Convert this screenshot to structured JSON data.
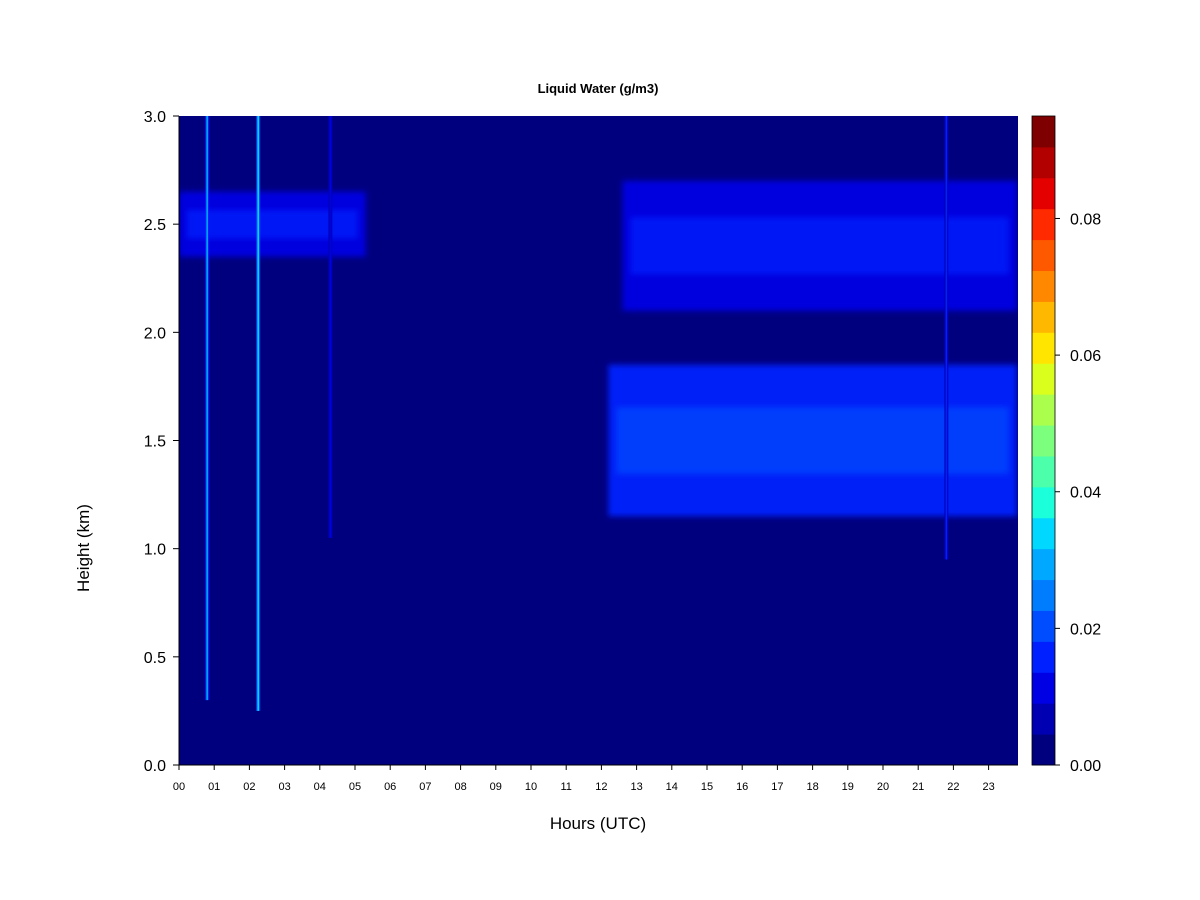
{
  "chart_data": {
    "type": "heatmap",
    "title": "Liquid Water (g/m3)",
    "xlabel": "Hours (UTC)",
    "ylabel": "Height (km)",
    "xlim": [
      0,
      24
    ],
    "ylim": [
      0.0,
      3.0
    ],
    "x_ticks": [
      "00",
      "01",
      "02",
      "03",
      "04",
      "05",
      "06",
      "07",
      "08",
      "09",
      "10",
      "11",
      "12",
      "13",
      "14",
      "15",
      "16",
      "17",
      "18",
      "19",
      "20",
      "21",
      "22",
      "23"
    ],
    "y_ticks": [
      "0.0",
      "0.5",
      "1.0",
      "1.5",
      "2.0",
      "2.5",
      "3.0"
    ],
    "colorbar": {
      "range": [
        0.0,
        0.095
      ],
      "tick_labels": [
        "0.00",
        "0.02",
        "0.04",
        "0.06",
        "0.08"
      ],
      "tick_values": [
        0.0,
        0.02,
        0.04,
        0.06,
        0.08
      ],
      "colors": [
        "#00007f",
        "#0000b2",
        "#0000e5",
        "#0020ff",
        "#004cff",
        "#007cff",
        "#00a8ff",
        "#00d8ff",
        "#1cffdb",
        "#4cffab",
        "#7cff7c",
        "#abff4c",
        "#dbff1c",
        "#ffe500",
        "#ffb800",
        "#ff8800",
        "#ff5900",
        "#ff2a00",
        "#e50000",
        "#b20000",
        "#7f0000"
      ]
    },
    "cloud_layers": [
      {
        "hours": [
          0.0,
          5.3
        ],
        "height_km": [
          2.35,
          2.65
        ],
        "lwc": 0.012
      },
      {
        "hours": [
          12.6,
          23.8
        ],
        "height_km": [
          2.1,
          2.7
        ],
        "lwc": 0.012
      },
      {
        "hours": [
          12.2,
          23.8
        ],
        "height_km": [
          1.15,
          1.85
        ],
        "lwc": 0.015
      }
    ],
    "streaks": [
      {
        "hour": 0.8,
        "height_km": [
          0.3,
          3.0
        ],
        "lwc": 0.03
      },
      {
        "hour": 2.25,
        "height_km": [
          0.25,
          3.0
        ],
        "lwc": 0.035
      },
      {
        "hour": 4.3,
        "height_km": [
          1.05,
          3.0
        ],
        "lwc": 0.012
      },
      {
        "hour": 21.8,
        "height_km": [
          0.95,
          3.0
        ],
        "lwc": 0.015
      }
    ]
  }
}
